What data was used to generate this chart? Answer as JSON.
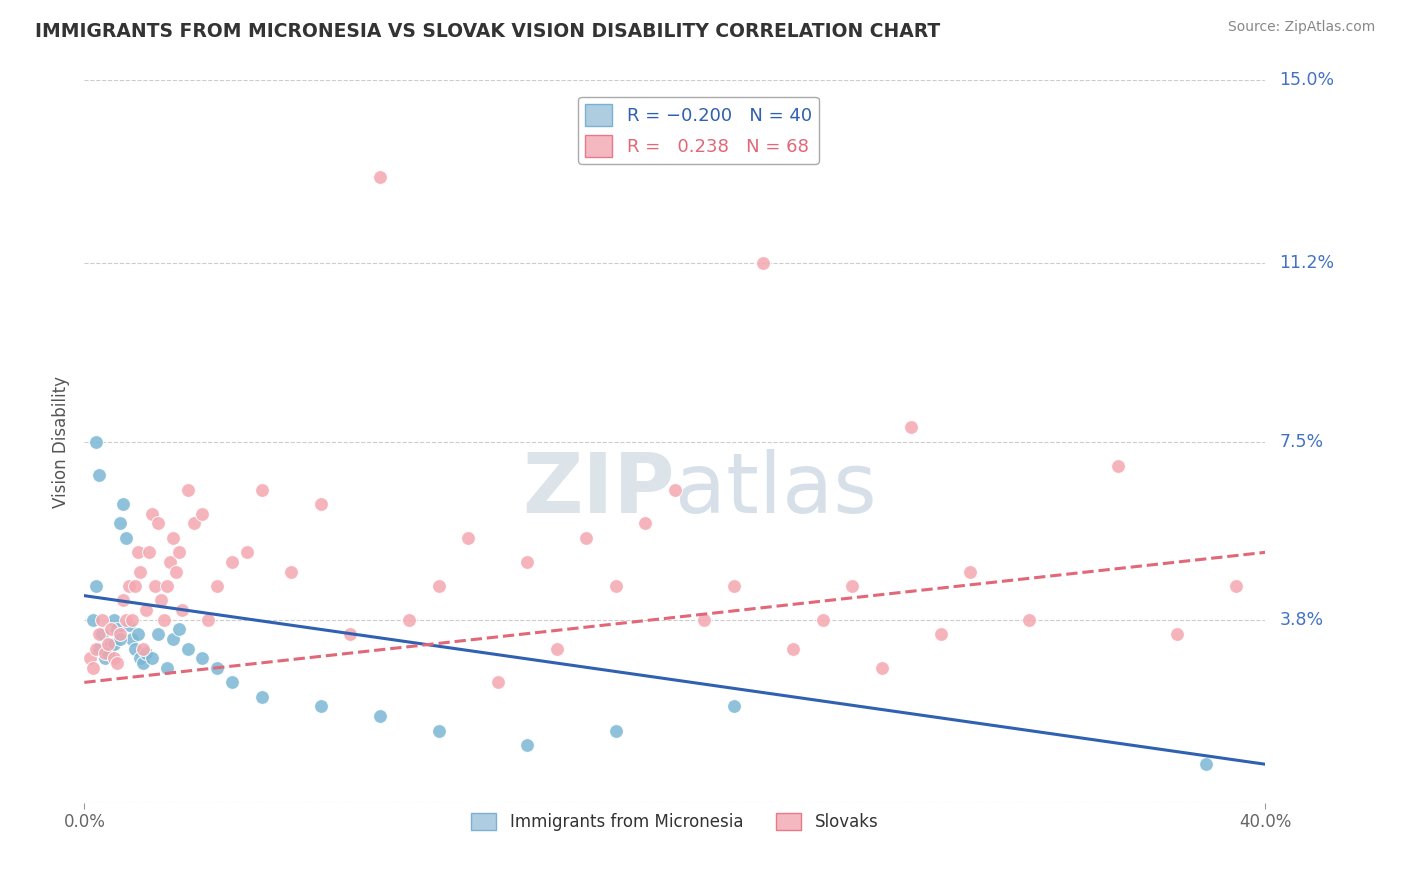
{
  "title": "IMMIGRANTS FROM MICRONESIA VS SLOVAK VISION DISABILITY CORRELATION CHART",
  "source": "Source: ZipAtlas.com",
  "ylabel": "Vision Disability",
  "ytick_vals": [
    0.0,
    3.8,
    7.5,
    11.2,
    15.0
  ],
  "ytick_labels_right": [
    "",
    "3.8%",
    "7.5%",
    "11.2%",
    "15.0%"
  ],
  "xlim": [
    0.0,
    40.0
  ],
  "ylim": [
    0.0,
    15.0
  ],
  "series1_name": "Immigrants from Micronesia",
  "series2_name": "Slovaks",
  "series1_color": "#7bb8d4",
  "series2_color": "#f4a7b0",
  "series1_line_color": "#3060b0",
  "series2_line_color": "#e06878",
  "series1_R": -0.2,
  "series1_N": 40,
  "series2_R": 0.238,
  "series2_N": 68,
  "background_color": "#ffffff",
  "grid_color": "#cccccc",
  "title_color": "#333333",
  "axis_tick_color": "#4472c4",
  "watermark": "ZIPatlas",
  "watermark_color": "#c8d8e8",
  "series1_x": [
    0.3,
    0.4,
    0.5,
    0.6,
    0.7,
    0.8,
    0.9,
    1.0,
    1.1,
    1.2,
    1.3,
    1.4,
    1.5,
    1.6,
    1.7,
    1.8,
    1.9,
    2.0,
    2.1,
    2.3,
    2.5,
    2.8,
    3.0,
    3.2,
    3.5,
    4.0,
    4.5,
    5.0,
    6.0,
    8.0,
    10.0,
    12.0,
    15.0,
    18.0,
    22.0,
    38.0,
    0.4,
    0.5,
    1.0,
    1.2
  ],
  "series1_y": [
    3.8,
    4.5,
    3.2,
    3.5,
    3.0,
    3.1,
    3.3,
    3.8,
    3.6,
    5.8,
    6.2,
    5.5,
    3.7,
    3.4,
    3.2,
    3.5,
    3.0,
    2.9,
    3.1,
    3.0,
    3.5,
    2.8,
    3.4,
    3.6,
    3.2,
    3.0,
    2.8,
    2.5,
    2.2,
    2.0,
    1.8,
    1.5,
    1.2,
    1.5,
    2.0,
    0.8,
    7.5,
    6.8,
    3.3,
    3.4
  ],
  "series2_x": [
    0.2,
    0.3,
    0.4,
    0.5,
    0.6,
    0.7,
    0.8,
    0.9,
    1.0,
    1.1,
    1.2,
    1.3,
    1.4,
    1.5,
    1.6,
    1.7,
    1.8,
    1.9,
    2.0,
    2.1,
    2.2,
    2.3,
    2.4,
    2.5,
    2.6,
    2.7,
    2.8,
    2.9,
    3.0,
    3.1,
    3.2,
    3.3,
    3.5,
    3.7,
    4.0,
    4.2,
    4.5,
    5.0,
    5.5,
    6.0,
    7.0,
    8.0,
    9.0,
    10.0,
    11.0,
    12.0,
    13.0,
    14.0,
    15.0,
    16.0,
    17.0,
    18.0,
    19.0,
    20.0,
    21.0,
    22.0,
    23.0,
    24.0,
    25.0,
    26.0,
    27.0,
    28.0,
    29.0,
    30.0,
    32.0,
    35.0,
    37.0,
    39.0
  ],
  "series2_y": [
    3.0,
    2.8,
    3.2,
    3.5,
    3.8,
    3.1,
    3.3,
    3.6,
    3.0,
    2.9,
    3.5,
    4.2,
    3.8,
    4.5,
    3.8,
    4.5,
    5.2,
    4.8,
    3.2,
    4.0,
    5.2,
    6.0,
    4.5,
    5.8,
    4.2,
    3.8,
    4.5,
    5.0,
    5.5,
    4.8,
    5.2,
    4.0,
    6.5,
    5.8,
    6.0,
    3.8,
    4.5,
    5.0,
    5.2,
    6.5,
    4.8,
    6.2,
    3.5,
    13.0,
    3.8,
    4.5,
    5.5,
    2.5,
    5.0,
    3.2,
    5.5,
    4.5,
    5.8,
    6.5,
    3.8,
    4.5,
    11.2,
    3.2,
    3.8,
    4.5,
    2.8,
    7.8,
    3.5,
    4.8,
    3.8,
    7.0,
    3.5,
    4.5
  ],
  "trendline1_x0": 0.0,
  "trendline1_y0": 4.3,
  "trendline1_x1": 40.0,
  "trendline1_y1": 0.8,
  "trendline2_x0": 0.0,
  "trendline2_y0": 2.5,
  "trendline2_x1": 40.0,
  "trendline2_y1": 5.2
}
